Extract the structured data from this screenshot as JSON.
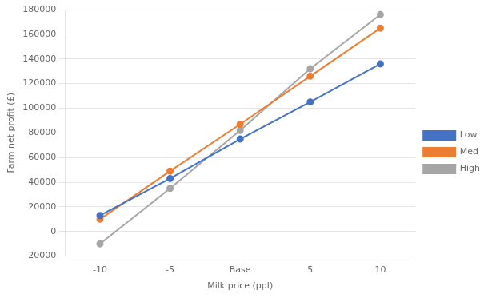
{
  "chart_data": {
    "type": "line",
    "categories": [
      "-10",
      "-5",
      "Base",
      "5",
      "10"
    ],
    "series": [
      {
        "name": "Low",
        "color": "#4472C4",
        "marker": "circle",
        "values": [
          13000,
          43000,
          75000,
          105000,
          136000
        ]
      },
      {
        "name": "Med",
        "color": "#ED7D31",
        "marker": "circle",
        "values": [
          10000,
          49000,
          87000,
          126000,
          165000
        ]
      },
      {
        "name": "High",
        "color": "#A5A5A5",
        "marker": "circle",
        "values": [
          -10000,
          35000,
          82000,
          132000,
          176000
        ]
      }
    ],
    "xlabel": "Milk price (ppl)",
    "ylabel": "Farm net profit (£)",
    "ylim": [
      -20000,
      180000
    ],
    "yticks": [
      -20000,
      0,
      20000,
      40000,
      60000,
      80000,
      100000,
      120000,
      140000,
      160000,
      180000
    ],
    "grid": "y",
    "legend": "right"
  }
}
